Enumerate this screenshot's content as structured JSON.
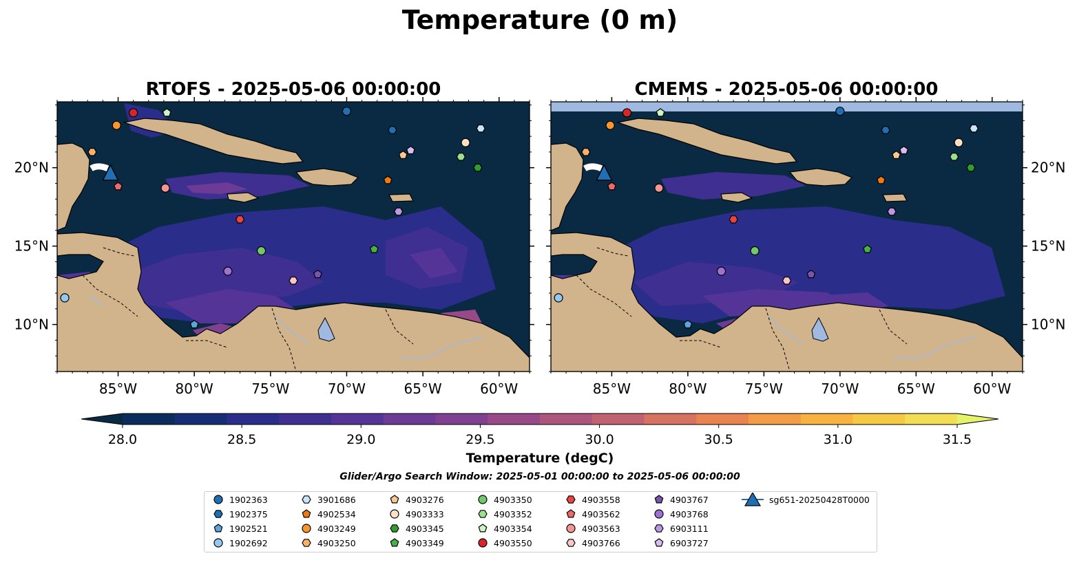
{
  "suptitle": "Temperature (0 m)",
  "panels": [
    {
      "title": "RTOFS - 2025-05-06 00:00:00"
    },
    {
      "title": "CMEMS - 2025-05-06 00:00:00"
    }
  ],
  "chart_data": {
    "type": "heatmap",
    "title": "Temperature (0 m)",
    "map_extent": {
      "lon": [
        -89,
        -58
      ],
      "lat": [
        7,
        24.2
      ]
    },
    "x_ticks": [
      "85°W",
      "80°W",
      "75°W",
      "70°W",
      "65°W",
      "60°W"
    ],
    "x_tick_values": [
      -85,
      -80,
      -75,
      -70,
      -65,
      -60
    ],
    "y_ticks": [
      "10°N",
      "15°N",
      "20°N"
    ],
    "y_tick_values": [
      10,
      15,
      20
    ],
    "colorbar": {
      "label": "Temperature (degC)",
      "min": 28.0,
      "max": 31.5,
      "step": 0.25,
      "extend": "both",
      "ticks": [
        "28.0",
        "28.5",
        "29.0",
        "29.5",
        "30.0",
        "30.5",
        "31.0",
        "31.5"
      ],
      "colors": [
        "#0a2a44",
        "#0c2d5c",
        "#162e75",
        "#2b2d8a",
        "#3f2f91",
        "#553497",
        "#6c3b95",
        "#804190",
        "#974a87",
        "#ac557d",
        "#c16270",
        "#d67262",
        "#e98452",
        "#f39b46",
        "#f7b23f",
        "#f6c944",
        "#f3dd55",
        "#e6f26a"
      ]
    },
    "glider": {
      "name": "sg651-20250428T0000",
      "lon": -85.5,
      "lat": 19.6
    },
    "platforms": [
      {
        "id": "1902363",
        "lon": -70.0,
        "lat": 23.6,
        "marker": "circle",
        "color": "#1f6fb2"
      },
      {
        "id": "1902375",
        "lon": -67.0,
        "lat": 22.4,
        "marker": "hexagon",
        "color": "#1f6fb2"
      },
      {
        "id": "1902521",
        "lon": -80.0,
        "lat": 10.0,
        "marker": "pentagon",
        "color": "#5aa6dd"
      },
      {
        "id": "1902692",
        "lon": -88.5,
        "lat": 11.7,
        "marker": "circle",
        "color": "#94c8ee"
      },
      {
        "id": "3901686",
        "lon": -61.2,
        "lat": 22.5,
        "marker": "hexagon",
        "color": "#c9e6fb"
      },
      {
        "id": "4902534",
        "lon": -67.3,
        "lat": 19.2,
        "marker": "pentagon",
        "color": "#f07a12"
      },
      {
        "id": "4903249",
        "lon": -85.1,
        "lat": 22.7,
        "marker": "circle",
        "color": "#f7962e"
      },
      {
        "id": "4903250",
        "lon": -86.7,
        "lat": 21.0,
        "marker": "hexagon",
        "color": "#f9b16b"
      },
      {
        "id": "4903276",
        "lon": -66.3,
        "lat": 20.8,
        "marker": "pentagon",
        "color": "#fbc98f"
      },
      {
        "id": "4903333",
        "lon": -62.2,
        "lat": 21.6,
        "marker": "circle",
        "color": "#fde1c4"
      },
      {
        "id": "4903345",
        "lon": -61.4,
        "lat": 20.0,
        "marker": "hexagon",
        "color": "#2f9e2f"
      },
      {
        "id": "4903349",
        "lon": -68.2,
        "lat": 14.8,
        "marker": "pentagon",
        "color": "#44b344"
      },
      {
        "id": "4903350",
        "lon": -75.6,
        "lat": 14.7,
        "marker": "circle",
        "color": "#72c96c"
      },
      {
        "id": "4903352",
        "lon": -62.5,
        "lat": 20.7,
        "marker": "hexagon",
        "color": "#9be08f"
      },
      {
        "id": "4903354",
        "lon": -81.8,
        "lat": 23.5,
        "marker": "pentagon",
        "color": "#cdf4c4"
      },
      {
        "id": "4903550",
        "lon": -84.0,
        "lat": 23.5,
        "marker": "circle",
        "color": "#d62728"
      },
      {
        "id": "4903558",
        "lon": -77.0,
        "lat": 16.7,
        "marker": "hexagon",
        "color": "#e8453f"
      },
      {
        "id": "4903562",
        "lon": -85.0,
        "lat": 18.8,
        "marker": "pentagon",
        "color": "#f0696a"
      },
      {
        "id": "4903563",
        "lon": -81.9,
        "lat": 18.7,
        "marker": "circle",
        "color": "#f49595"
      },
      {
        "id": "4903766",
        "lon": -73.5,
        "lat": 12.8,
        "marker": "hexagon",
        "color": "#fbc6c9"
      },
      {
        "id": "4903767",
        "lon": -71.9,
        "lat": 13.2,
        "marker": "pentagon",
        "color": "#7b55ad"
      },
      {
        "id": "4903768",
        "lon": -77.8,
        "lat": 13.4,
        "marker": "circle",
        "color": "#9d72d0"
      },
      {
        "id": "6903111",
        "lon": -66.6,
        "lat": 17.2,
        "marker": "hexagon",
        "color": "#bb97e4"
      },
      {
        "id": "6903727",
        "lon": -65.8,
        "lat": 21.1,
        "marker": "pentagon",
        "color": "#d7bdf3"
      }
    ]
  },
  "search_window": "Glider/Argo Search Window: 2025-05-01 00:00:00 to 2025-05-06 00:00:00",
  "colors": {
    "land": "#d2b48c",
    "ocean_dark": "#0a2a44",
    "lakes": "#9fb9e0",
    "glider": "#1f6fb2"
  }
}
